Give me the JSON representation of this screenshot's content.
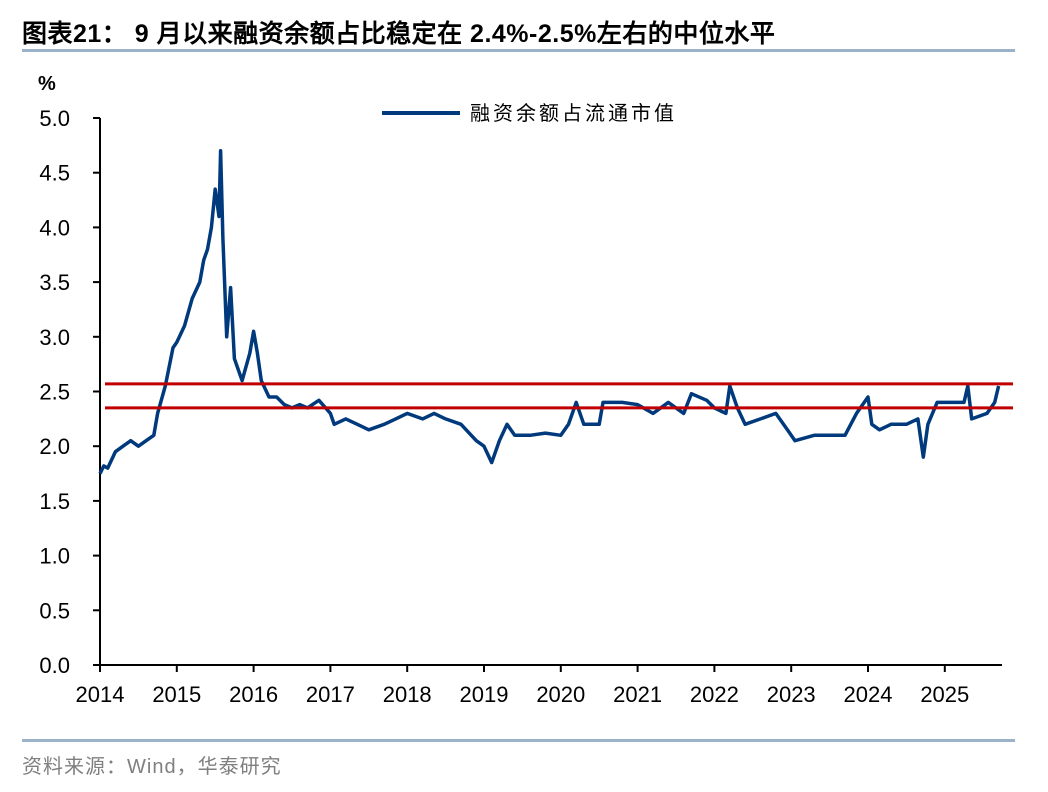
{
  "title": "图表21：  9 月以来融资余额占比稳定在 2.4%-2.5%左右的中位水平",
  "source": "资料来源：Wind，华泰研究",
  "colors": {
    "series": "#003a7d",
    "reference_lines": "#c00000",
    "rule": "#9cb2c8"
  },
  "chart_data": {
    "type": "line",
    "title": "",
    "ylabel": "%",
    "xlabel": "",
    "ylim": [
      0,
      5.0
    ],
    "xlim": [
      2014,
      2025.75
    ],
    "yticks": [
      "0.0",
      "0.5",
      "1.0",
      "1.5",
      "2.0",
      "2.5",
      "3.0",
      "3.5",
      "4.0",
      "4.5",
      "5.0"
    ],
    "xticks": [
      "2014",
      "2015",
      "2016",
      "2017",
      "2018",
      "2019",
      "2020",
      "2021",
      "2022",
      "2023",
      "2024",
      "2025"
    ],
    "legend": {
      "position": "top-center"
    },
    "grid": false,
    "reference_lines": [
      2.57,
      2.35
    ],
    "series": [
      {
        "name": "融资余额占流通市值",
        "x": [
          2014.0,
          2014.05,
          2014.1,
          2014.2,
          2014.3,
          2014.4,
          2014.5,
          2014.6,
          2014.7,
          2014.75,
          2014.85,
          2014.95,
          2015.0,
          2015.1,
          2015.2,
          2015.3,
          2015.35,
          2015.4,
          2015.45,
          2015.5,
          2015.55,
          2015.57,
          2015.6,
          2015.65,
          2015.7,
          2015.75,
          2015.85,
          2015.95,
          2016.0,
          2016.05,
          2016.1,
          2016.2,
          2016.3,
          2016.4,
          2016.5,
          2016.6,
          2016.7,
          2016.85,
          2017.0,
          2017.05,
          2017.2,
          2017.35,
          2017.5,
          2017.7,
          2017.85,
          2018.0,
          2018.2,
          2018.35,
          2018.5,
          2018.7,
          2018.9,
          2019.0,
          2019.1,
          2019.2,
          2019.3,
          2019.4,
          2019.6,
          2019.8,
          2020.0,
          2020.1,
          2020.2,
          2020.3,
          2020.5,
          2020.55,
          2020.8,
          2021.0,
          2021.2,
          2021.4,
          2021.6,
          2021.7,
          2021.9,
          2022.0,
          2022.15,
          2022.2,
          2022.3,
          2022.4,
          2022.6,
          2022.8,
          2022.95,
          2023.05,
          2023.3,
          2023.5,
          2023.7,
          2023.85,
          2024.0,
          2024.05,
          2024.15,
          2024.3,
          2024.5,
          2024.65,
          2024.72,
          2024.78,
          2024.9,
          2025.1,
          2025.25,
          2025.3,
          2025.35,
          2025.55,
          2025.65,
          2025.7
        ],
        "values": [
          1.75,
          1.82,
          1.8,
          1.95,
          2.0,
          2.05,
          2.0,
          2.05,
          2.1,
          2.3,
          2.55,
          2.9,
          2.95,
          3.1,
          3.35,
          3.5,
          3.7,
          3.8,
          4.0,
          4.35,
          4.1,
          4.7,
          3.9,
          3.0,
          3.45,
          2.8,
          2.6,
          2.85,
          3.05,
          2.85,
          2.6,
          2.45,
          2.45,
          2.38,
          2.35,
          2.38,
          2.35,
          2.42,
          2.3,
          2.2,
          2.25,
          2.2,
          2.15,
          2.2,
          2.25,
          2.3,
          2.25,
          2.3,
          2.25,
          2.2,
          2.05,
          2.0,
          1.85,
          2.05,
          2.2,
          2.1,
          2.1,
          2.12,
          2.1,
          2.2,
          2.4,
          2.2,
          2.2,
          2.4,
          2.4,
          2.38,
          2.3,
          2.4,
          2.3,
          2.48,
          2.42,
          2.35,
          2.3,
          2.55,
          2.35,
          2.2,
          2.25,
          2.3,
          2.15,
          2.05,
          2.1,
          2.1,
          2.1,
          2.3,
          2.45,
          2.2,
          2.15,
          2.2,
          2.2,
          2.25,
          1.9,
          2.2,
          2.4,
          2.4,
          2.4,
          2.55,
          2.25,
          2.3,
          2.4,
          2.55
        ]
      }
    ]
  }
}
